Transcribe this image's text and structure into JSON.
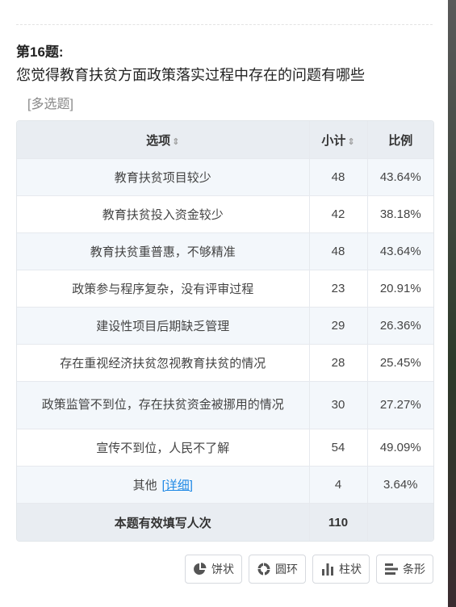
{
  "question": {
    "number_label": "第16题:",
    "text": "您觉得教育扶贫方面政策落实过程中存在的问题有哪些",
    "type_label": "[多选题]"
  },
  "table": {
    "headers": {
      "option": "选项",
      "count": "小计",
      "ratio": "比例"
    },
    "sort_glyph": "⇕",
    "rows": [
      {
        "option": "教育扶贫项目较少",
        "count": "48",
        "ratio": "43.64%"
      },
      {
        "option": "教育扶贫投入资金较少",
        "count": "42",
        "ratio": "38.18%"
      },
      {
        "option": "教育扶贫重普惠，不够精准",
        "count": "48",
        "ratio": "43.64%"
      },
      {
        "option": "政策参与程序复杂，没有评审过程",
        "count": "23",
        "ratio": "20.91%"
      },
      {
        "option": "建设性项目后期缺乏管理",
        "count": "29",
        "ratio": "26.36%"
      },
      {
        "option": "存在重视经济扶贫忽视教育扶贫的情况",
        "count": "28",
        "ratio": "25.45%"
      },
      {
        "option": "政策监管不到位，存在扶贫资金被挪用的情况",
        "count": "30",
        "ratio": "27.27%"
      },
      {
        "option": "宣传不到位，人民不了解",
        "count": "54",
        "ratio": "49.09%"
      },
      {
        "option": "其他",
        "link": "[详细]",
        "count": "4",
        "ratio": "3.64%"
      }
    ],
    "footer": {
      "label": "本题有效填写人次",
      "count": "110"
    }
  },
  "chart_buttons": [
    {
      "label": "饼状",
      "icon": "pie-icon"
    },
    {
      "label": "圆环",
      "icon": "donut-icon"
    },
    {
      "label": "柱状",
      "icon": "column-icon"
    },
    {
      "label": "条形",
      "icon": "bar-icon"
    }
  ],
  "colors": {
    "header_bg": "#e9edf2",
    "stripe_bg": "#f3f7fb",
    "link": "#1e88e5",
    "icon": "#555555"
  }
}
